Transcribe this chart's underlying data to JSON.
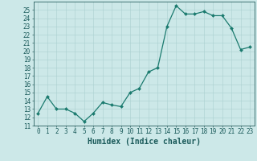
{
  "x": [
    0,
    1,
    2,
    3,
    4,
    5,
    6,
    7,
    8,
    9,
    10,
    11,
    12,
    13,
    14,
    15,
    16,
    17,
    18,
    19,
    20,
    21,
    22,
    23
  ],
  "y": [
    12.5,
    14.5,
    13.0,
    13.0,
    12.5,
    11.5,
    12.5,
    13.8,
    13.5,
    13.3,
    15.0,
    15.5,
    17.5,
    18.0,
    23.0,
    25.5,
    24.5,
    24.5,
    24.8,
    24.3,
    24.3,
    22.8,
    20.2,
    20.5
  ],
  "xlabel": "Humidex (Indice chaleur)",
  "line_color": "#1a7a6e",
  "marker": "D",
  "marker_size": 2.0,
  "bg_color": "#cce8e8",
  "grid_color": "#aad0d0",
  "xlim": [
    -0.5,
    23.5
  ],
  "ylim": [
    11,
    26
  ],
  "yticks": [
    11,
    12,
    13,
    14,
    15,
    16,
    17,
    18,
    19,
    20,
    21,
    22,
    23,
    24,
    25
  ],
  "xticks": [
    0,
    1,
    2,
    3,
    4,
    5,
    6,
    7,
    8,
    9,
    10,
    11,
    12,
    13,
    14,
    15,
    16,
    17,
    18,
    19,
    20,
    21,
    22,
    23
  ],
  "tick_fontsize": 5.5,
  "xlabel_fontsize": 7.0,
  "tick_color": "#1a5a5a",
  "spine_color": "#2a6060"
}
